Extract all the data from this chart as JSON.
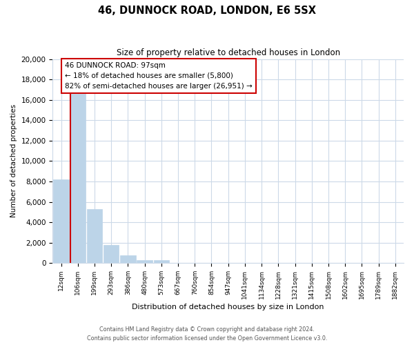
{
  "title": "46, DUNNOCK ROAD, LONDON, E6 5SX",
  "subtitle": "Size of property relative to detached houses in London",
  "xlabel": "Distribution of detached houses by size in London",
  "ylabel": "Number of detached properties",
  "bar_labels": [
    "12sqm",
    "106sqm",
    "199sqm",
    "293sqm",
    "386sqm",
    "480sqm",
    "573sqm",
    "667sqm",
    "760sqm",
    "854sqm",
    "947sqm",
    "1041sqm",
    "1134sqm",
    "1228sqm",
    "1321sqm",
    "1415sqm",
    "1508sqm",
    "1602sqm",
    "1695sqm",
    "1789sqm",
    "1882sqm"
  ],
  "bar_values": [
    8200,
    16600,
    5300,
    1800,
    750,
    300,
    300,
    0,
    0,
    0,
    0,
    0,
    0,
    0,
    0,
    0,
    0,
    0,
    0,
    0,
    0
  ],
  "bar_color": "#bcd4e8",
  "annotation_line1": "46 DUNNOCK ROAD: 97sqm",
  "annotation_line2": "← 18% of detached houses are smaller (5,800)",
  "annotation_line3": "82% of semi-detached houses are larger (26,951) →",
  "annotation_box_facecolor": "#ffffff",
  "annotation_box_edgecolor": "#cc0000",
  "vline_color": "#cc0000",
  "vline_x": 0.555,
  "ylim": [
    0,
    20000
  ],
  "yticks": [
    0,
    2000,
    4000,
    6000,
    8000,
    10000,
    12000,
    14000,
    16000,
    18000,
    20000
  ],
  "footer1": "Contains HM Land Registry data © Crown copyright and database right 2024.",
  "footer2": "Contains public sector information licensed under the Open Government Licence v3.0.",
  "bg_color": "#ffffff",
  "grid_color": "#ccd9e8"
}
